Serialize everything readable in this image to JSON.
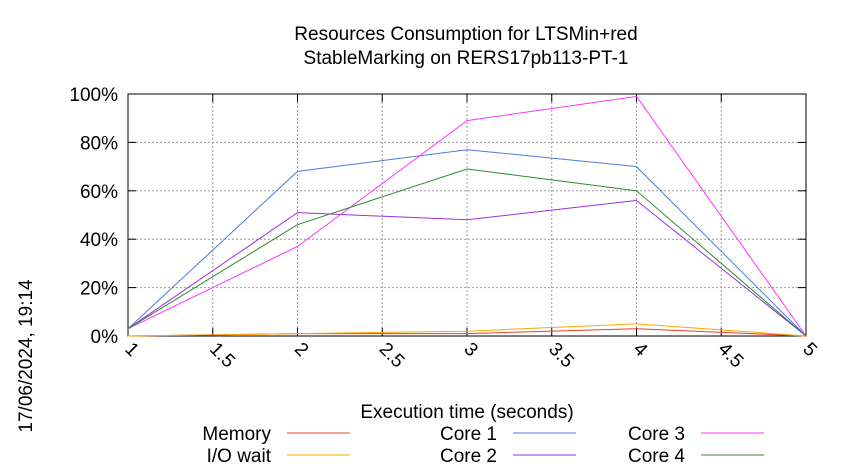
{
  "chart_data": {
    "type": "line",
    "title_lines": [
      "Resources Consumption for LTSMin+red",
      "StableMarking on RERS17pb113-PT-1"
    ],
    "xlabel": "Execution time (seconds)",
    "ylabel": "",
    "timestamp": "17/06/2024, 19:14",
    "xlim": [
      1,
      5
    ],
    "ylim": [
      0,
      100
    ],
    "x_ticks": [
      "1",
      "1.5",
      "2",
      "2.5",
      "3",
      "3.5",
      "4",
      "4.5",
      "5"
    ],
    "x_tick_values": [
      1,
      1.5,
      2,
      2.5,
      3,
      3.5,
      4,
      4.5,
      5
    ],
    "y_ticks": [
      "0%",
      "20%",
      "40%",
      "60%",
      "80%",
      "100%"
    ],
    "y_tick_values": [
      0,
      20,
      40,
      60,
      80,
      100
    ],
    "grid": true,
    "legend_position": "bottom",
    "x": [
      1,
      2,
      3,
      4,
      5
    ],
    "series": [
      {
        "name": "Memory",
        "color": "#e8412a",
        "values": [
          0,
          1,
          1,
          3,
          0
        ]
      },
      {
        "name": "I/O wait",
        "color": "#ffa500",
        "values": [
          0,
          1,
          2,
          5,
          0
        ]
      },
      {
        "name": "Core 1",
        "color": "#4e7bdb",
        "values": [
          3,
          68,
          77,
          70,
          0
        ]
      },
      {
        "name": "Core 2",
        "color": "#9b30e0",
        "values": [
          3,
          51,
          48,
          56,
          0
        ]
      },
      {
        "name": "Core 3",
        "color": "#ff33ff",
        "values": [
          3,
          37,
          89,
          99,
          0
        ]
      },
      {
        "name": "Core 4",
        "color": "#2e8b2e",
        "values": [
          3,
          46,
          69,
          60,
          0
        ]
      }
    ]
  }
}
